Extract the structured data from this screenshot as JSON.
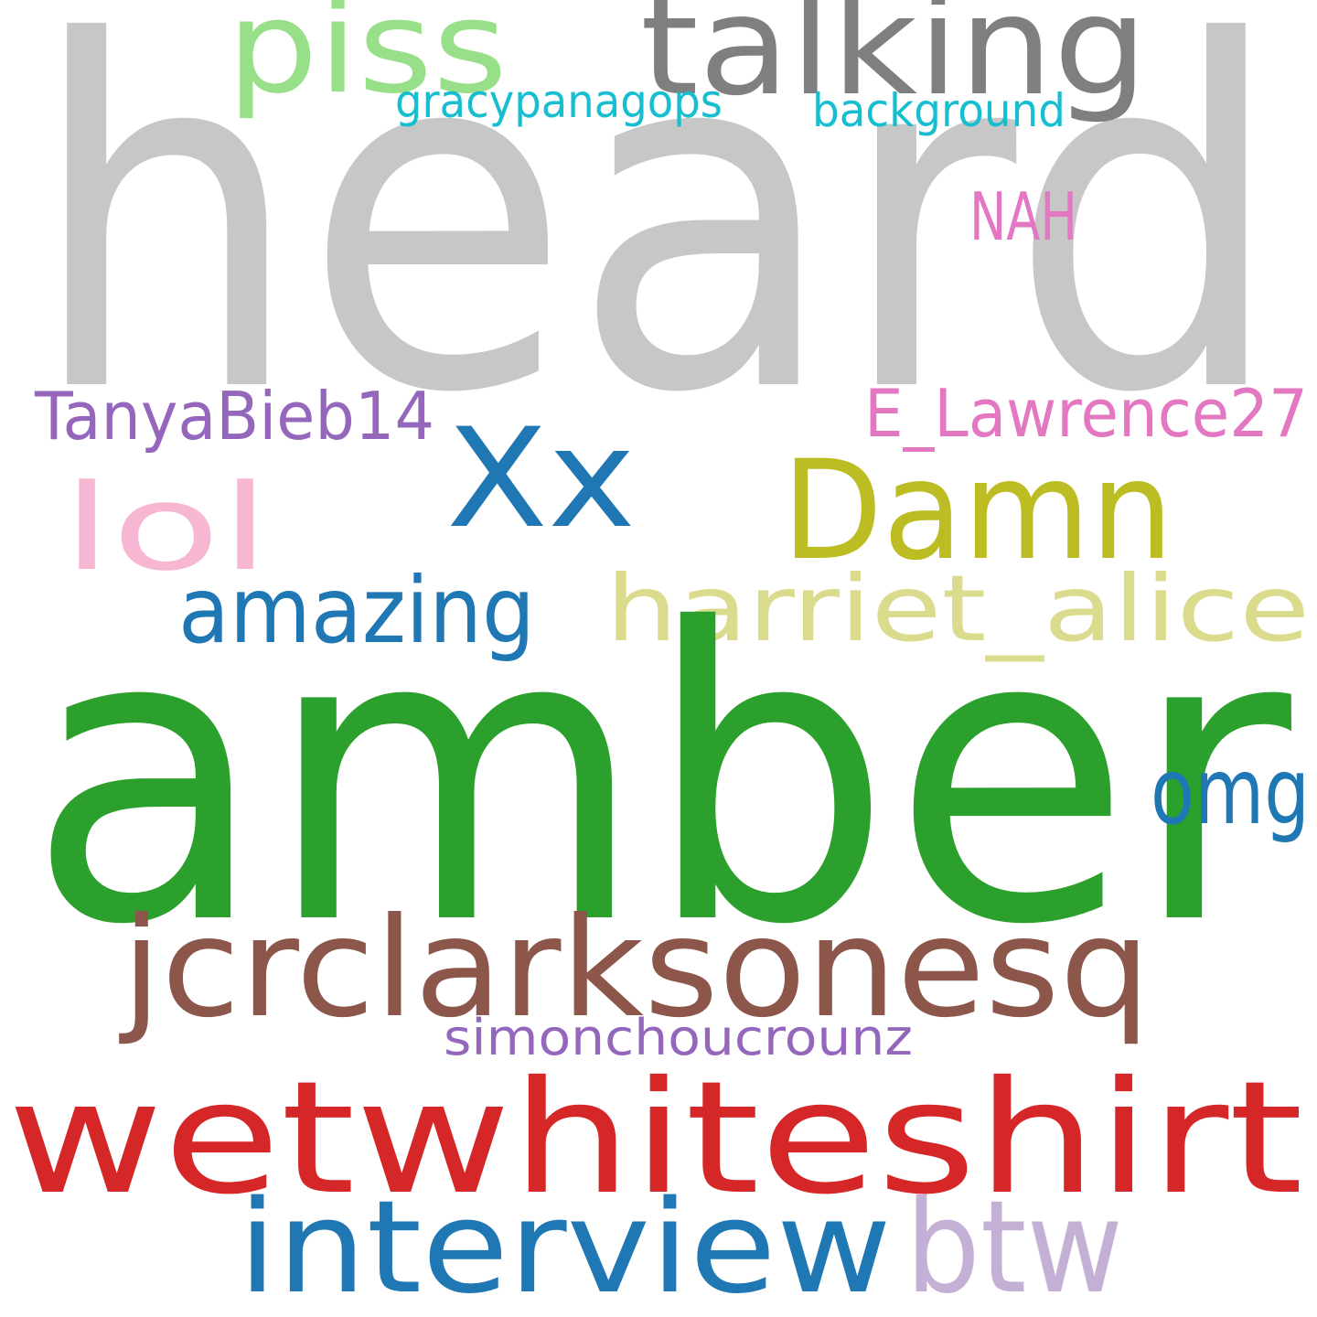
{
  "words": [
    {
      "key": "heard",
      "text": "heard",
      "color": "#c7c7c7"
    },
    {
      "key": "talking",
      "text": "talking",
      "color": "#7f7f7f"
    },
    {
      "key": "piss",
      "text": "piss",
      "color": "#98df8a"
    },
    {
      "key": "gracypanagops",
      "text": "gracypanagops",
      "color": "#17becf"
    },
    {
      "key": "background",
      "text": "background",
      "color": "#17becf"
    },
    {
      "key": "nah",
      "text": "NAH",
      "color": "#e377c2"
    },
    {
      "key": "tanyabieb14",
      "text": "TanyaBieb14",
      "color": "#9467bd"
    },
    {
      "key": "e_lawrence27",
      "text": "E_Lawrence27",
      "color": "#e377c2"
    },
    {
      "key": "xx",
      "text": "Xx",
      "color": "#1f77b4"
    },
    {
      "key": "damn",
      "text": "Damn",
      "color": "#bcbd22"
    },
    {
      "key": "lol",
      "text": "lol",
      "color": "#f7b6d2"
    },
    {
      "key": "amazing",
      "text": "amazing",
      "color": "#1f77b4"
    },
    {
      "key": "harriet_alice",
      "text": "harriet_alice",
      "color": "#dbdb8d"
    },
    {
      "key": "amber",
      "text": "amber",
      "color": "#2ca02c"
    },
    {
      "key": "omg",
      "text": "omg",
      "color": "#1f77b4"
    },
    {
      "key": "jcrclarksonesq",
      "text": "jcrclarksonesq",
      "color": "#8c564b"
    },
    {
      "key": "simonchoucrounz",
      "text": "simonchoucrounz",
      "color": "#9467bd"
    },
    {
      "key": "wetwhiteshirt",
      "text": "wetwhiteshirt",
      "color": "#d62728"
    },
    {
      "key": "interview",
      "text": "interview",
      "color": "#1f77b4"
    },
    {
      "key": "btw",
      "text": "btw",
      "color": "#c5b0d5"
    }
  ]
}
